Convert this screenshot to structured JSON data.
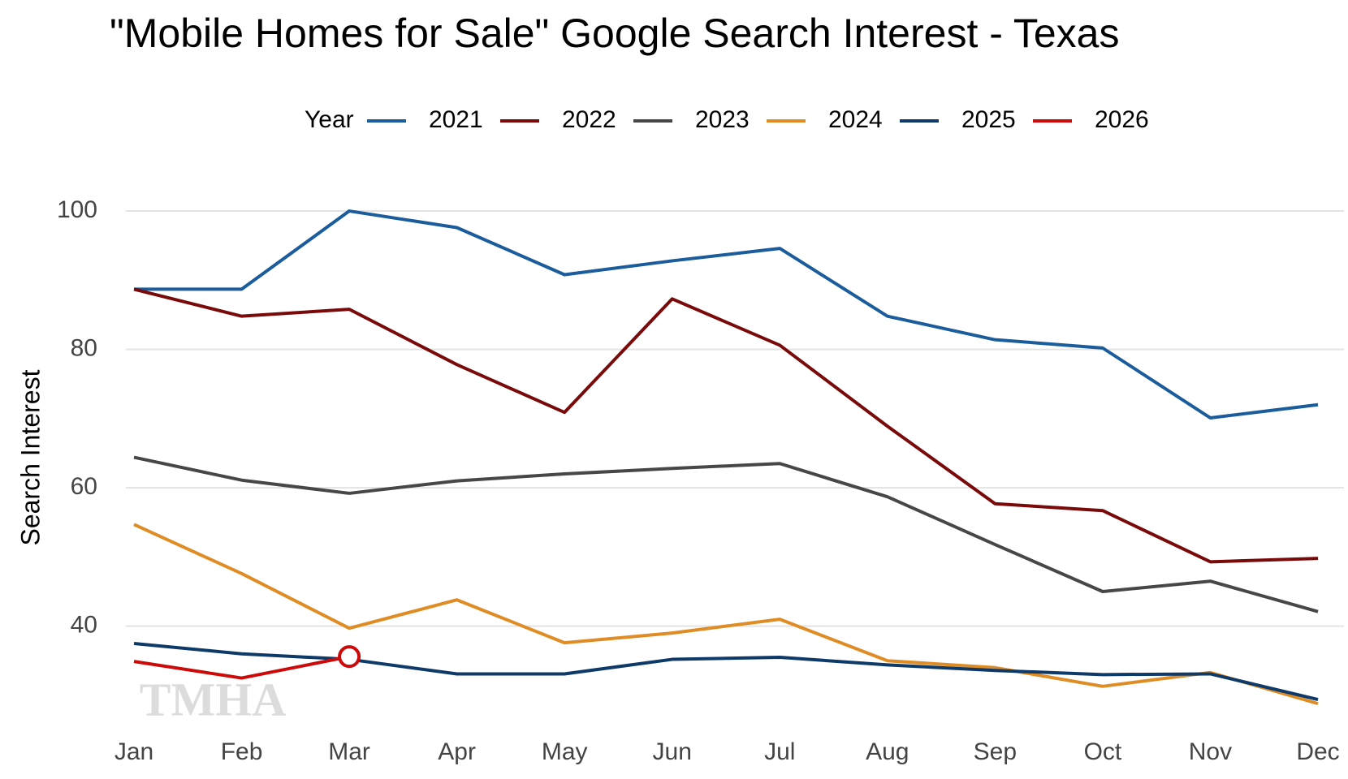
{
  "chart_data": {
    "type": "line",
    "title": "\"Mobile Homes for Sale\" Google Search Interest - Texas",
    "y_label": "Search Interest",
    "legend_title": "Year",
    "watermark": "TMHA",
    "categories": [
      "Jan",
      "Feb",
      "Mar",
      "Apr",
      "May",
      "Jun",
      "Jul",
      "Aug",
      "Sep",
      "Oct",
      "Nov",
      "Dec"
    ],
    "series": [
      {
        "name": "2021",
        "color": "#1b5c9c",
        "values": [
          88.7,
          88.7,
          100,
          97.6,
          90.8,
          92.8,
          94.6,
          84.8,
          81.4,
          80.2,
          70.1,
          72
        ]
      },
      {
        "name": "2022",
        "color": "#7a0a0a",
        "values": [
          88.7,
          84.8,
          85.8,
          77.8,
          70.9,
          87.3,
          80.6,
          68.9,
          57.7,
          56.7,
          49.3,
          49.8
        ]
      },
      {
        "name": "2023",
        "color": "#474747",
        "values": [
          64.4,
          61.1,
          59.2,
          61,
          62,
          62.8,
          63.5,
          58.7,
          51.8,
          45,
          46.5,
          42.1
        ]
      },
      {
        "name": "2024",
        "color": "#e08c24",
        "values": [
          54.7,
          47.6,
          39.7,
          43.8,
          37.6,
          39,
          41,
          35,
          34,
          31.3,
          33.3,
          28.8
        ]
      },
      {
        "name": "2025",
        "color": "#0e3a6a",
        "values": [
          37.5,
          36,
          35.2,
          33.1,
          33.1,
          35.2,
          35.5,
          34.4,
          33.6,
          33,
          33.1,
          29.4
        ]
      },
      {
        "name": "2026",
        "color": "#cc0a0a",
        "values": [
          34.9,
          32.5,
          35.6,
          null,
          null,
          null,
          null,
          null,
          null,
          null,
          null,
          null
        ]
      }
    ],
    "ylim": [
      26,
      102
    ],
    "yticks": [
      40,
      60,
      80,
      100
    ],
    "grid": true
  }
}
